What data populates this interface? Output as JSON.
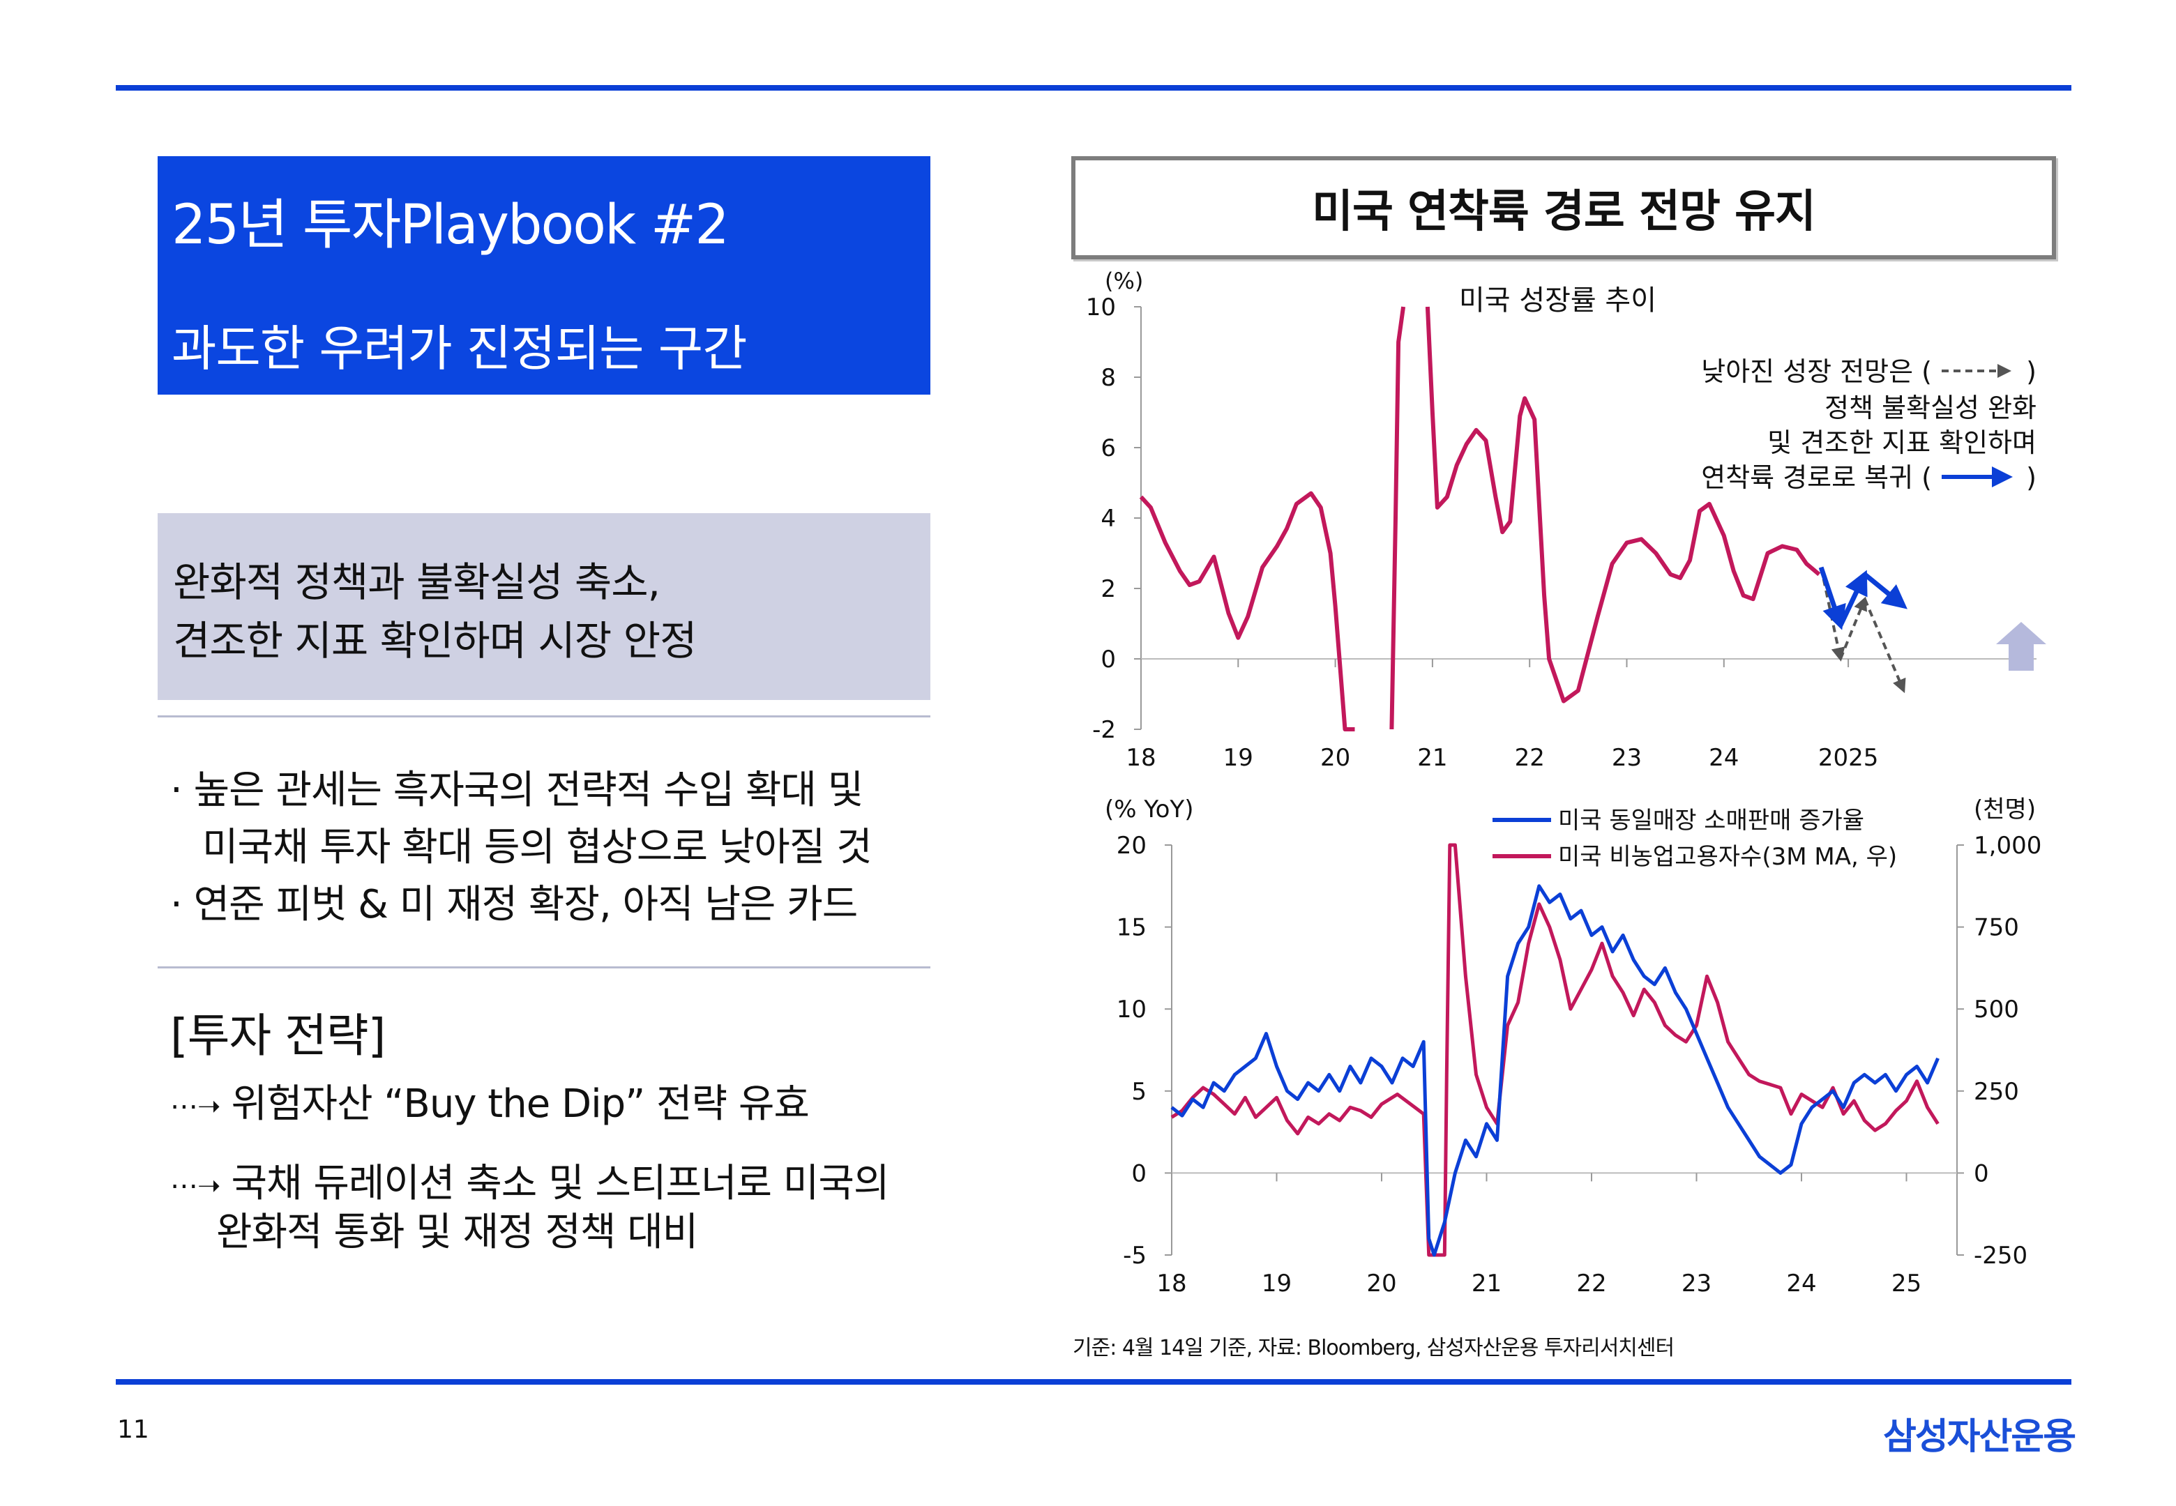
{
  "slide": {
    "title_line1": "25년 투자Playbook #2",
    "title_line2": "과도한 우려가 진정되는 구간",
    "summary_line1": "완화적 정책과 불확실성 축소,",
    "summary_line2": "견조한 지표 확인하며 시장 안정",
    "bullets": [
      "· 높은 관세는 흑자국의 전략적 수입 확대 및",
      "미국채 투자 확대 등의 협상으로 낮아질 것",
      "· 연준 피벗 & 미 재정 확장, 아직 남은 카드"
    ],
    "strategy_title": "[투자 전략]",
    "strategy_items": [
      "위험자산 “Buy the Dip” 전략 유효",
      "국채 듀레이션 축소 및 스티프너로 미국의",
      "완화적 통화 및 재정 정책 대비"
    ],
    "chart_box_title": "미국 연착륙 경로 전망 유지",
    "footnote": "기준: 4월 14일 기준, 자료: Bloomberg, 삼성자산운용 투자리서치센터",
    "page_number": "11",
    "logo_text": "삼성자산운용"
  },
  "colors": {
    "brand_blue": "#0b46e0",
    "series_magenta": "#c2185b",
    "series_blue": "#0b3fd6",
    "dashed_gray": "#555555",
    "up_arrow": "#b5b9dc"
  },
  "chart_data": [
    {
      "type": "line",
      "title": "미국 성장률 추이",
      "ylabel": "(%)",
      "ylim": [
        -2,
        10
      ],
      "yticks": [
        -2,
        0,
        2,
        4,
        6,
        8,
        10
      ],
      "xticks": [
        "18",
        "19",
        "20",
        "21",
        "22",
        "23",
        "24",
        "2025"
      ],
      "annotation_lines": [
        "낮아진 성장 전망은 (",
        "정책 불확실성 완화",
        "및 견조한 지표 확인하며",
        "연착륙 경로로 복귀 ("
      ],
      "annotation_close": ")",
      "series": [
        {
          "x": [
            2018.0,
            2018.1,
            2018.25,
            2018.4,
            2018.5,
            2018.6,
            2018.75,
            2018.9,
            2019.0,
            2019.1,
            2019.25,
            2019.4,
            2019.5,
            2019.6,
            2019.75,
            2019.85,
            2019.95,
            2020.0,
            2020.1,
            2020.2
          ],
          "y": [
            4.6,
            4.3,
            3.3,
            2.5,
            2.1,
            2.2,
            2.9,
            1.3,
            0.6,
            1.2,
            2.6,
            3.2,
            3.7,
            4.4,
            4.7,
            4.3,
            3.0,
            1.5,
            -2.0,
            -2.0
          ]
        },
        {
          "x": [
            2020.58,
            2020.62,
            2020.65,
            2020.7
          ],
          "y": [
            -2.0,
            4.0,
            9.0,
            10.0
          ]
        },
        {
          "x": [
            2020.95,
            2021.0,
            2021.05,
            2021.15,
            2021.25,
            2021.35,
            2021.45,
            2021.55,
            2021.65,
            2021.72,
            2021.8,
            2021.9,
            2021.95,
            2022.05,
            2022.15,
            2022.2,
            2022.35,
            2022.5,
            2022.7,
            2022.85,
            2023.0,
            2023.15,
            2023.3,
            2023.45,
            2023.55,
            2023.65,
            2023.75,
            2023.85,
            2024.0,
            2024.1,
            2024.2,
            2024.3,
            2024.45,
            2024.6,
            2024.75,
            2024.85,
            2024.98
          ],
          "y": [
            10.0,
            7.0,
            4.3,
            4.6,
            5.5,
            6.1,
            6.5,
            6.2,
            4.6,
            3.6,
            3.9,
            6.9,
            7.4,
            6.8,
            1.8,
            0.0,
            -1.2,
            -0.9,
            1.2,
            2.7,
            3.3,
            3.4,
            3.0,
            2.4,
            2.3,
            2.8,
            4.2,
            4.4,
            3.5,
            2.5,
            1.8,
            1.7,
            3.0,
            3.2,
            3.1,
            2.7,
            2.4
          ]
        }
      ],
      "forecast_solid": {
        "x": [
          2025.0,
          2025.2,
          2025.45,
          2025.85
        ],
        "y": [
          2.6,
          0.95,
          2.4,
          1.5
        ]
      },
      "forecast_dashed": {
        "x": [
          2025.0,
          2025.2,
          2025.45,
          2025.85
        ],
        "y": [
          2.6,
          0.0,
          1.7,
          -0.9
        ]
      }
    },
    {
      "type": "line",
      "ylabel_left": "(% YoY)",
      "ylabel_right": "(천명)",
      "ylim_left": [
        -5,
        20
      ],
      "ylim_right": [
        -250,
        1000
      ],
      "yticks_left": [
        -5,
        0,
        5,
        10,
        15,
        20
      ],
      "yticks_right": [
        "-250",
        "0",
        "250",
        "500",
        "750",
        "1,000"
      ],
      "xticks": [
        "18",
        "19",
        "20",
        "21",
        "22",
        "23",
        "24",
        "25"
      ],
      "series": [
        {
          "name": "미국 동일매장 소매판매 증가율",
          "axis": "left",
          "x": [
            2018.0,
            2018.1,
            2018.2,
            2018.3,
            2018.4,
            2018.5,
            2018.6,
            2018.7,
            2018.8,
            2018.9,
            2019.0,
            2019.1,
            2019.2,
            2019.3,
            2019.4,
            2019.5,
            2019.6,
            2019.7,
            2019.8,
            2019.9,
            2020.0,
            2020.1,
            2020.2,
            2020.3,
            2020.4,
            2020.45,
            2020.5,
            2020.6,
            2020.7,
            2020.8,
            2020.9,
            2021.0,
            2021.1,
            2021.2,
            2021.3,
            2021.4,
            2021.5,
            2021.6,
            2021.7,
            2021.8,
            2021.9,
            2022.0,
            2022.1,
            2022.2,
            2022.3,
            2022.4,
            2022.5,
            2022.6,
            2022.7,
            2022.8,
            2022.9,
            2023.0,
            2023.1,
            2023.2,
            2023.3,
            2023.4,
            2023.5,
            2023.6,
            2023.7,
            2023.8,
            2023.9,
            2024.0,
            2024.1,
            2024.2,
            2024.3,
            2024.4,
            2024.5,
            2024.6,
            2024.7,
            2024.8,
            2024.9,
            2025.0,
            2025.1,
            2025.2,
            2025.3
          ],
          "y": [
            4.0,
            3.5,
            4.5,
            4.0,
            5.5,
            5.0,
            6.0,
            6.5,
            7.0,
            8.5,
            6.5,
            5.0,
            4.5,
            5.5,
            5.0,
            6.0,
            5.0,
            6.5,
            5.5,
            7.0,
            6.5,
            5.5,
            7.0,
            6.5,
            8.0,
            -4.0,
            -5.0,
            -3.0,
            0.0,
            2.0,
            1.0,
            3.0,
            2.0,
            12.0,
            14.0,
            15.0,
            17.5,
            16.5,
            17.0,
            15.5,
            16.0,
            14.5,
            15.0,
            13.5,
            14.5,
            13.0,
            12.0,
            11.5,
            12.5,
            11.0,
            10.0,
            8.5,
            7.0,
            5.5,
            4.0,
            3.0,
            2.0,
            1.0,
            0.5,
            0.0,
            0.5,
            3.0,
            4.0,
            4.5,
            5.0,
            4.0,
            5.5,
            6.0,
            5.5,
            6.0,
            5.0,
            6.0,
            6.5,
            5.5,
            7.0
          ]
        },
        {
          "name": "미국 비농업고용자수(3M MA, 우)",
          "axis": "right",
          "x": [
            2018.0,
            2018.1,
            2018.2,
            2018.3,
            2018.4,
            2018.5,
            2018.6,
            2018.7,
            2018.8,
            2018.9,
            2019.0,
            2019.1,
            2019.2,
            2019.3,
            2019.4,
            2019.5,
            2019.6,
            2019.7,
            2019.8,
            2019.9,
            2020.0,
            2020.1,
            2020.15,
            2020.4,
            2020.45,
            2020.5,
            2020.55,
            2020.6,
            2020.62,
            2020.65,
            2020.7,
            2020.8,
            2020.9,
            2021.0,
            2021.1,
            2021.2,
            2021.3,
            2021.4,
            2021.5,
            2021.6,
            2021.7,
            2021.8,
            2021.9,
            2022.0,
            2022.1,
            2022.2,
            2022.3,
            2022.4,
            2022.5,
            2022.6,
            2022.7,
            2022.8,
            2022.9,
            2023.0,
            2023.1,
            2023.2,
            2023.3,
            2023.4,
            2023.5,
            2023.6,
            2023.7,
            2023.8,
            2023.9,
            2024.0,
            2024.1,
            2024.2,
            2024.3,
            2024.4,
            2024.5,
            2024.6,
            2024.7,
            2024.8,
            2024.9,
            2025.0,
            2025.1,
            2025.2,
            2025.3
          ],
          "y": [
            170,
            190,
            230,
            260,
            240,
            210,
            180,
            230,
            170,
            200,
            230,
            160,
            120,
            170,
            150,
            180,
            160,
            200,
            190,
            170,
            210,
            230,
            240,
            180,
            -250,
            -250,
            -250,
            -250,
            300,
            1000,
            1000,
            600,
            300,
            200,
            150,
            450,
            520,
            700,
            820,
            750,
            650,
            500,
            560,
            620,
            700,
            600,
            550,
            480,
            560,
            520,
            450,
            420,
            400,
            450,
            600,
            520,
            400,
            350,
            300,
            280,
            270,
            260,
            180,
            240,
            220,
            200,
            260,
            180,
            220,
            160,
            130,
            150,
            190,
            220,
            280,
            200,
            150
          ]
        }
      ]
    }
  ]
}
